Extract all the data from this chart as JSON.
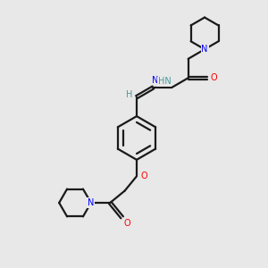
{
  "bg_color": "#e8e8e8",
  "bond_color": "#1a1a1a",
  "N_color": "#0000ff",
  "O_color": "#ff0000",
  "H_color": "#4a9a9a",
  "line_width": 1.6,
  "fig_size": [
    3.0,
    3.0
  ],
  "dpi": 100,
  "xlim": [
    0,
    10
  ],
  "ylim": [
    0,
    10
  ]
}
